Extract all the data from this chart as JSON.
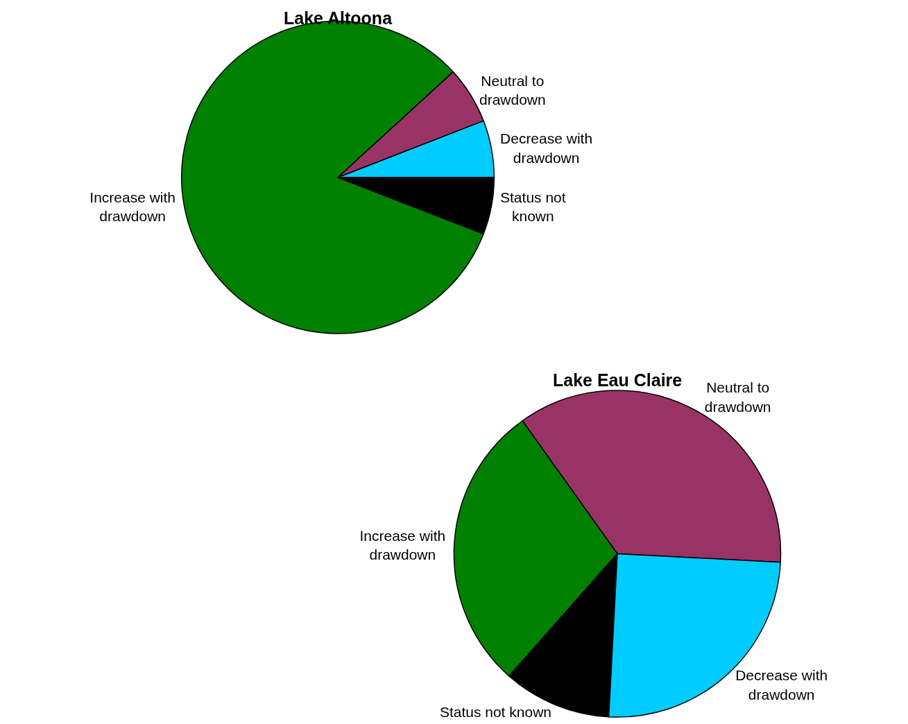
{
  "chart_data": [
    {
      "type": "pie",
      "title": "Lake Altoona",
      "categories": [
        "Decrease with\ndrawdown",
        "Neutral to\ndrawdown",
        "Increase with\ndrawdown",
        "Status not\nknown"
      ],
      "values": [
        5.9,
        5.9,
        82.3,
        5.9
      ],
      "colors": [
        "#00ccff",
        "#993366",
        "#008000",
        "#000000"
      ],
      "legend": false
    },
    {
      "type": "pie",
      "title": "Lake Eau Claire",
      "categories": [
        "Neutral to\ndrawdown",
        "Increase with\ndrawdown",
        "Status not known",
        "Decrease with\ndrawdown"
      ],
      "values": [
        35.7,
        28.6,
        10.7,
        25.0
      ],
      "colors": [
        "#993366",
        "#008000",
        "#000000",
        "#00ccff"
      ],
      "legend": false
    }
  ]
}
